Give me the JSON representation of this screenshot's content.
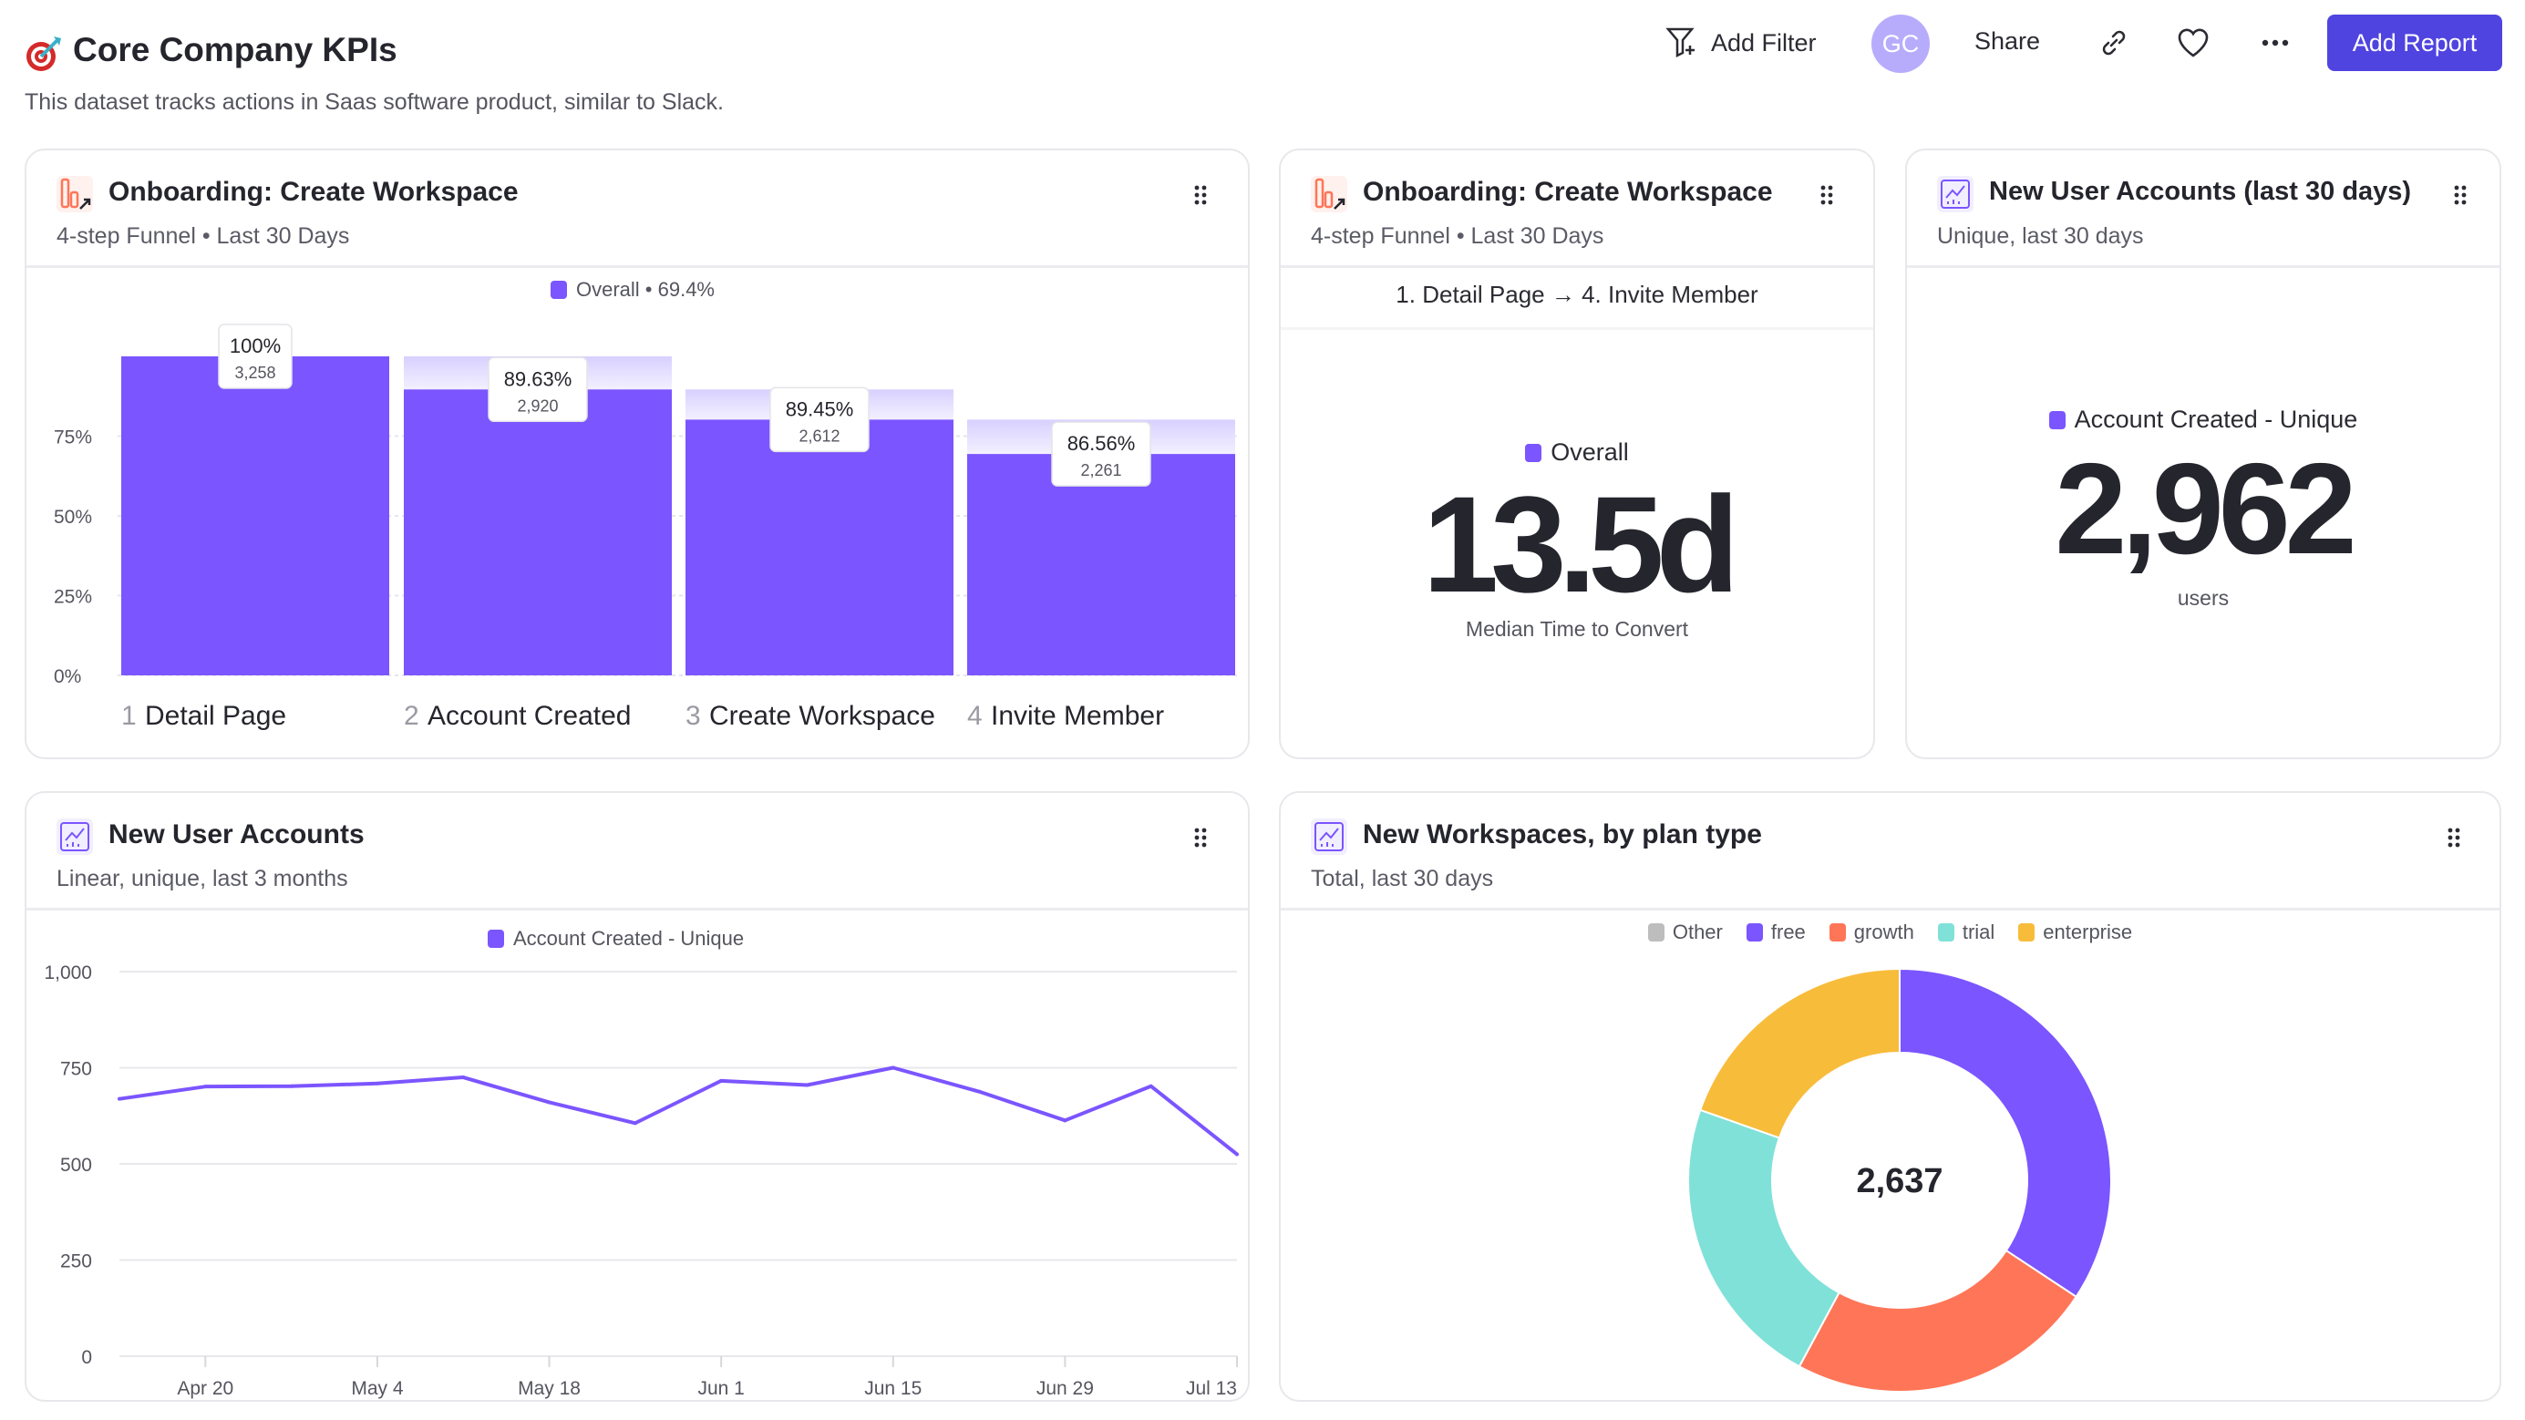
{
  "header": {
    "title": "Core Company KPIs",
    "description": "This dataset tracks actions in Saas software product, similar to Slack.",
    "add_filter": "Add Filter",
    "avatar_initials": "GC",
    "share": "Share",
    "add_report": "Add Report",
    "icons": [
      "target-icon",
      "filter-plus-icon",
      "link-icon",
      "heart-icon",
      "more-icon"
    ]
  },
  "colors": {
    "accent": "#7b55ff",
    "button": "#4f44e0",
    "funnel_icon": "#ff7557",
    "other": "#bdbdbd",
    "free": "#7b55ff",
    "growth": "#ff7557",
    "trial": "#80e1d9",
    "enterprise": "#f8bc3b"
  },
  "funnel_card": {
    "title": "Onboarding: Create Workspace",
    "subtitle": "4-step Funnel • Last 30 Days",
    "chart_data": {
      "type": "bar",
      "legend": "Overall • 69.4%",
      "ylim": [
        0,
        100
      ],
      "y_ticks": [
        "0%",
        "25%",
        "50%",
        "75%"
      ],
      "steps": [
        {
          "num": "1",
          "label": "Detail Page",
          "pct_label": "100%",
          "count": "3,258",
          "value": 100
        },
        {
          "num": "2",
          "label": "Account Created",
          "pct_label": "89.63%",
          "count": "2,920",
          "value": 89.63
        },
        {
          "num": "3",
          "label": "Create Workspace",
          "pct_label": "89.45%",
          "count": "2,612",
          "value": 80.17
        },
        {
          "num": "4",
          "label": "Invite Member",
          "pct_label": "86.56%",
          "count": "2,261",
          "value": 69.4
        }
      ]
    }
  },
  "ttc_card": {
    "title": "Onboarding: Create Workspace",
    "subtitle": "4-step Funnel • Last 30 Days",
    "steps_range": "1. Detail Page → 4. Invite Member",
    "legend": "Overall",
    "value": "13.5d",
    "caption": "Median Time to Convert"
  },
  "users30_card": {
    "title": "New User Accounts (last 30 days)",
    "subtitle": "Unique, last 30 days",
    "legend": "Account Created - Unique",
    "value": "2,962",
    "caption": "users"
  },
  "line_card": {
    "title": "New User Accounts",
    "subtitle": "Linear, unique, last 3 months",
    "chart_data": {
      "type": "line",
      "legend": "Account Created - Unique",
      "ylim": [
        0,
        1000
      ],
      "y_ticks": [
        0,
        250,
        500,
        750,
        1000
      ],
      "y_tick_labels": [
        "0",
        "250",
        "500",
        "750",
        "1,000"
      ],
      "x_tick_labels": [
        "Apr 20",
        "May 4",
        "May 18",
        "Jun 1",
        "Jun 15",
        "Jun 29",
        "Jul 13"
      ],
      "x": [
        "Apr 13",
        "Apr 20",
        "Apr 27",
        "May 4",
        "May 11",
        "May 18",
        "May 25",
        "Jun 1",
        "Jun 8",
        "Jun 15",
        "Jun 22",
        "Jun 29",
        "Jul 6",
        "Jul 13"
      ],
      "series": [
        {
          "name": "Account Created - Unique",
          "values": [
            669,
            701,
            702,
            709,
            725,
            660,
            606,
            716,
            705,
            750,
            688,
            613,
            702,
            525
          ]
        }
      ]
    }
  },
  "plan_card": {
    "title": "New Workspaces, by plan type",
    "subtitle": "Total, last 30 days",
    "chart_data": {
      "type": "pie",
      "total_label": "2,637",
      "legend": [
        "Other",
        "free",
        "growth",
        "trial",
        "enterprise"
      ],
      "slices": [
        {
          "name": "free",
          "value": 904
        },
        {
          "name": "growth",
          "value": 622
        },
        {
          "name": "trial",
          "value": 594
        },
        {
          "name": "enterprise",
          "value": 517
        },
        {
          "name": "Other",
          "value": 0
        }
      ]
    }
  }
}
